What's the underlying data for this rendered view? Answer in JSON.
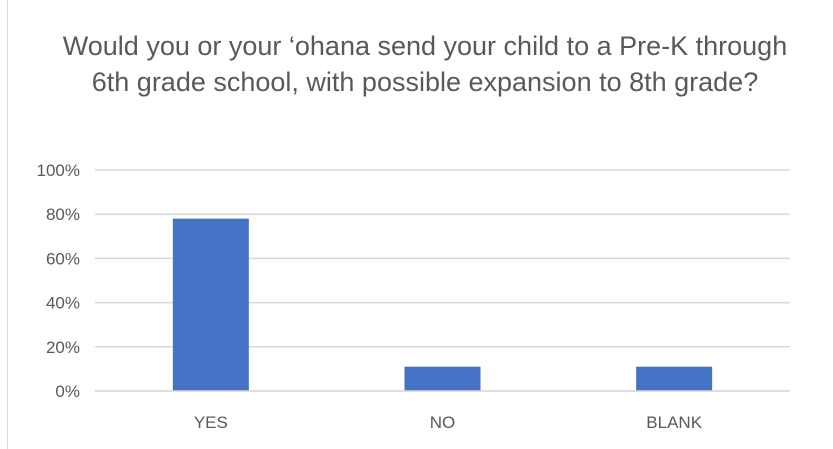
{
  "chart_data": {
    "type": "bar",
    "title": "Would you or your ‘ohana send your child to a Pre-K through 6th grade school, with possible expansion to 8th grade?",
    "categories": [
      "YES",
      "NO",
      "BLANK"
    ],
    "values": [
      78,
      11,
      11
    ],
    "ylim": [
      0,
      100
    ],
    "yticks": [
      0,
      20,
      40,
      60,
      80,
      100
    ],
    "ytick_labels": [
      "0%",
      "20%",
      "40%",
      "60%",
      "80%",
      "100%"
    ],
    "xlabel": "",
    "ylabel": "",
    "grid": true,
    "legend": "none",
    "colors": {
      "bar": "#4472C4",
      "grid": "#d9d9d9",
      "text": "#595959"
    }
  }
}
